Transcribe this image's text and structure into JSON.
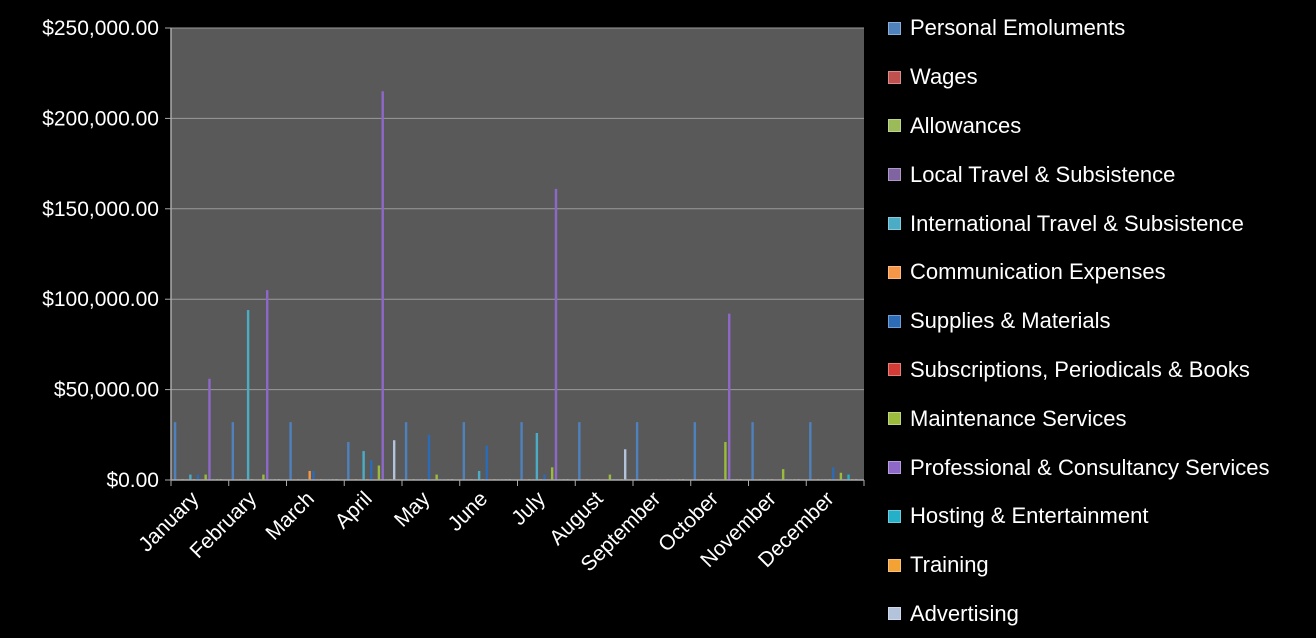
{
  "chart_data": {
    "type": "bar",
    "ylim": [
      0,
      250000
    ],
    "y_ticks": [
      "$0.00",
      "$50,000.00",
      "$100,000.00",
      "$150,000.00",
      "$200,000.00",
      "$250,000.00"
    ],
    "y_tick_values": [
      0,
      50000,
      100000,
      150000,
      200000,
      250000
    ],
    "grid": true,
    "legend_position": "right",
    "categories": [
      "January",
      "February",
      "March",
      "April",
      "May",
      "June",
      "July",
      "August",
      "September",
      "October",
      "November",
      "December"
    ],
    "series": [
      {
        "name": "Personal Emoluments",
        "color": "#4f81bd",
        "values": [
          32000,
          32000,
          32000,
          21000,
          32000,
          32000,
          32000,
          32000,
          32000,
          32000,
          32000,
          32000
        ]
      },
      {
        "name": "Wages",
        "color": "#c0504d",
        "values": [
          0,
          0,
          0,
          0,
          0,
          0,
          0,
          0,
          0,
          0,
          0,
          0
        ]
      },
      {
        "name": "Allowances",
        "color": "#9bbb59",
        "values": [
          0,
          0,
          0,
          0,
          0,
          0,
          0,
          0,
          0,
          0,
          0,
          0
        ]
      },
      {
        "name": "Local Travel & Subsistence",
        "color": "#8064a2",
        "values": [
          0,
          0,
          0,
          0,
          0,
          0,
          0,
          0,
          0,
          0,
          0,
          0
        ]
      },
      {
        "name": "International Travel & Subsistence",
        "color": "#4bacc6",
        "values": [
          3000,
          94000,
          0,
          16000,
          0,
          5000,
          26000,
          0,
          0,
          0,
          0,
          0
        ]
      },
      {
        "name": "Communication Expenses",
        "color": "#f79646",
        "values": [
          0,
          0,
          5000,
          0,
          0,
          0,
          0,
          0,
          0,
          0,
          0,
          0
        ]
      },
      {
        "name": "Supplies & Materials",
        "color": "#2c6bb6",
        "values": [
          3000,
          0,
          5000,
          11000,
          25000,
          19000,
          3000,
          0,
          0,
          0,
          0,
          7000
        ]
      },
      {
        "name": "Subscriptions, Periodicals & Books",
        "color": "#d33b36",
        "values": [
          0,
          0,
          0,
          0,
          0,
          0,
          0,
          0,
          0,
          0,
          0,
          0
        ]
      },
      {
        "name": "Maintenance Services",
        "color": "#9bbb3c",
        "values": [
          3000,
          3000,
          0,
          8000,
          3000,
          0,
          7000,
          3000,
          0,
          21000,
          6000,
          4000
        ]
      },
      {
        "name": "Professional & Consultancy Services",
        "color": "#8e68c8",
        "values": [
          56000,
          105000,
          0,
          215000,
          0,
          0,
          161000,
          0,
          0,
          92000,
          0,
          0
        ]
      },
      {
        "name": "Hosting & Entertainment",
        "color": "#23b0c8",
        "values": [
          0,
          0,
          0,
          0,
          0,
          0,
          0,
          0,
          0,
          0,
          0,
          3000
        ]
      },
      {
        "name": "Training",
        "color": "#f4a233",
        "values": [
          0,
          0,
          0,
          0,
          0,
          0,
          0,
          0,
          0,
          0,
          0,
          0
        ]
      },
      {
        "name": "Advertising",
        "color": "#b4c3dc",
        "values": [
          0,
          0,
          0,
          22000,
          0,
          0,
          0,
          17000,
          0,
          0,
          0,
          0
        ]
      }
    ]
  }
}
